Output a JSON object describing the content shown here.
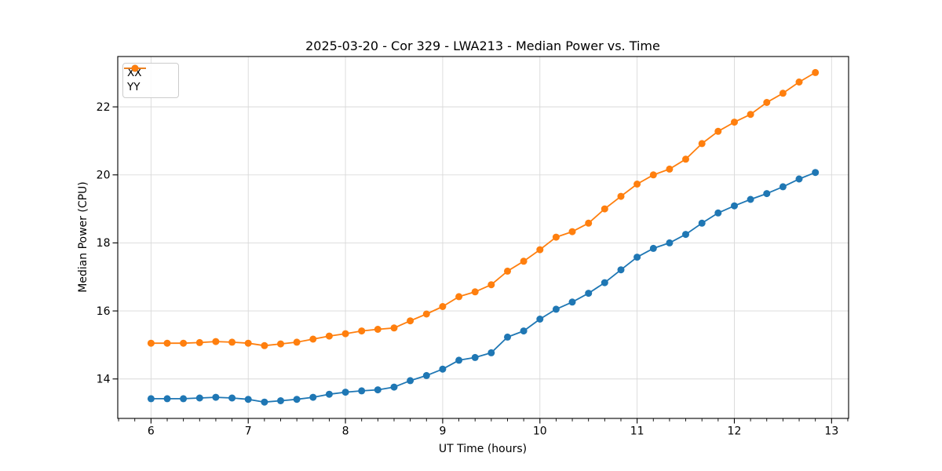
{
  "figure": {
    "background": "#ffffff"
  },
  "colors": {
    "grid": "#d9d9d9",
    "spines": "#000000",
    "tick": "#000000",
    "text": "#000000",
    "legend_border": "#cccccc",
    "series_xx": "#1f77b4",
    "series_yy": "#ff7f0e"
  },
  "legend": {
    "position": "upper-left",
    "items": [
      {
        "label": "XX",
        "color": "#1f77b4"
      },
      {
        "label": "YY",
        "color": "#ff7f0e"
      }
    ]
  },
  "chart_data": {
    "type": "line",
    "title": "2025-03-20 - Cor 329 - LWA213 - Median Power vs. Time",
    "xlabel": "UT Time (hours)",
    "ylabel": "Median Power (CPU)",
    "xlim": [
      5.658,
      13.175
    ],
    "ylim": [
      12.84,
      23.48
    ],
    "x_major_ticks": [
      6,
      7,
      8,
      9,
      10,
      11,
      12,
      13
    ],
    "x_minor_step": 0.1666667,
    "y_major_ticks": [
      14,
      16,
      18,
      20,
      22
    ],
    "grid": true,
    "legend_position": "upper-left",
    "marker": "circle",
    "x": [
      6.0,
      6.1667,
      6.3333,
      6.5,
      6.6667,
      6.8333,
      7.0,
      7.1667,
      7.3333,
      7.5,
      7.6667,
      7.8333,
      8.0,
      8.1667,
      8.3333,
      8.5,
      8.6667,
      8.8333,
      9.0,
      9.1667,
      9.3333,
      9.5,
      9.6667,
      9.8333,
      10.0,
      10.1667,
      10.3333,
      10.5,
      10.6667,
      10.8333,
      11.0,
      11.1667,
      11.3333,
      11.5,
      11.6667,
      11.8333,
      12.0,
      12.1667,
      12.3333,
      12.5,
      12.6667,
      12.8333
    ],
    "series": [
      {
        "name": "XX",
        "color": "#1f77b4",
        "values": [
          13.42,
          13.42,
          13.42,
          13.44,
          13.46,
          13.44,
          13.4,
          13.32,
          13.36,
          13.4,
          13.46,
          13.55,
          13.61,
          13.65,
          13.68,
          13.76,
          13.95,
          14.1,
          14.29,
          14.55,
          14.63,
          14.77,
          15.23,
          15.41,
          15.76,
          16.05,
          16.26,
          16.52,
          16.83,
          17.21,
          17.58,
          17.84,
          18.0,
          18.25,
          18.58,
          18.88,
          19.09,
          19.28,
          19.45,
          19.65,
          19.88,
          20.07
        ]
      },
      {
        "name": "YY",
        "color": "#ff7f0e",
        "values": [
          15.05,
          15.05,
          15.05,
          15.07,
          15.1,
          15.08,
          15.05,
          14.98,
          15.03,
          15.08,
          15.17,
          15.26,
          15.33,
          15.41,
          15.46,
          15.5,
          15.71,
          15.91,
          16.13,
          16.42,
          16.56,
          16.77,
          17.17,
          17.46,
          17.8,
          18.17,
          18.33,
          18.58,
          19.0,
          19.37,
          19.73,
          20.0,
          20.17,
          20.46,
          20.92,
          21.28,
          21.55,
          21.78,
          22.13,
          22.4,
          22.73,
          23.01
        ]
      }
    ]
  }
}
